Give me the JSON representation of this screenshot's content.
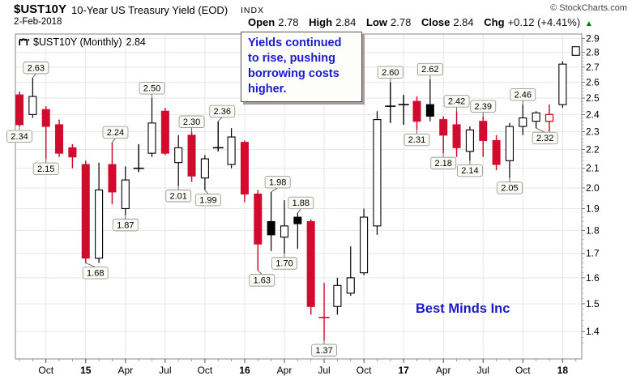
{
  "header": {
    "symbol": "$UST10Y",
    "title": "10-Year US Treasury Yield (EOD)",
    "exchange": "INDX",
    "date": "2-Feb-2018",
    "copyright": "© StockCharts.com",
    "quote": {
      "open_label": "Open",
      "open": "2.78",
      "high_label": "High",
      "high": "2.84",
      "low_label": "Low",
      "low": "2.78",
      "close_label": "Close",
      "close": "2.84",
      "chg_label": "Chg",
      "chg": "+0.12 (+4.41%)",
      "direction_arrow": "▲",
      "up_color": "#007a00"
    }
  },
  "legend": {
    "label": "$UST10Y (Monthly)",
    "last": "2.84"
  },
  "note_box": {
    "text": "Yields continued\nto rise, pushing\nborrowing costs\nhigher.",
    "color": "#1a1acd"
  },
  "watermark": {
    "text": "Best Minds Inc",
    "color": "#1a1acd"
  },
  "colors": {
    "down_fill": "#d20a2e",
    "up_fill": "#ffffff",
    "black_fill": "#000000",
    "grid": "#e7e7e7",
    "plot_border": "#888888",
    "tick": "#777777",
    "label_box_bg": "#fbfbf6",
    "label_box_border": "#999999"
  },
  "chart_data": {
    "type": "candlestick",
    "symbol": "$UST10Y",
    "timeframe": "Monthly",
    "scale": "log",
    "ylim": [
      1.35,
      2.92
    ],
    "grid": true,
    "y_ticks": [
      "2.9",
      "2.8",
      "2.7",
      "2.6",
      "2.5",
      "2.4",
      "2.3",
      "2.2",
      "2.1",
      "2.0",
      "1.9",
      "1.8",
      "1.7",
      "1.6",
      "1.5",
      "1.4"
    ],
    "x_ticks": [
      {
        "i": 2,
        "label": "Oct",
        "bold": false
      },
      {
        "i": 5,
        "label": "15",
        "bold": true
      },
      {
        "i": 8,
        "label": "Apr",
        "bold": false
      },
      {
        "i": 11,
        "label": "Jul",
        "bold": false
      },
      {
        "i": 14,
        "label": "Oct",
        "bold": false
      },
      {
        "i": 17,
        "label": "16",
        "bold": true
      },
      {
        "i": 20,
        "label": "Apr",
        "bold": false
      },
      {
        "i": 23,
        "label": "Jul",
        "bold": false
      },
      {
        "i": 26,
        "label": "Oct",
        "bold": false
      },
      {
        "i": 29,
        "label": "17",
        "bold": true
      },
      {
        "i": 32,
        "label": "Apr",
        "bold": false
      },
      {
        "i": 35,
        "label": "Jul",
        "bold": false
      },
      {
        "i": 38,
        "label": "Oct",
        "bold": false
      },
      {
        "i": 41,
        "label": "18",
        "bold": true
      }
    ],
    "candles": [
      {
        "m": "Aug 2014",
        "o": 2.52,
        "h": 2.54,
        "l": 2.33,
        "c": 2.34,
        "s": "red",
        "n": {
          "t": "2.34",
          "p": "below",
          "dx": 0
        }
      },
      {
        "m": "Sep 2014",
        "o": 2.4,
        "h": 2.63,
        "l": 2.38,
        "c": 2.51,
        "s": "white",
        "n": {
          "t": "2.63",
          "p": "above",
          "dx": 4
        }
      },
      {
        "m": "Oct 2014",
        "o": 2.43,
        "h": 2.45,
        "l": 2.15,
        "c": 2.33,
        "s": "red",
        "n": {
          "t": "2.15",
          "p": "below",
          "dx": 0
        }
      },
      {
        "m": "Nov 2014",
        "o": 2.34,
        "h": 2.37,
        "l": 2.16,
        "c": 2.18,
        "s": "red"
      },
      {
        "m": "Dec 2014",
        "o": 2.21,
        "h": 2.23,
        "l": 2.1,
        "c": 2.16,
        "s": "red"
      },
      {
        "m": "Jan 2015",
        "o": 2.12,
        "h": 2.14,
        "l": 1.66,
        "c": 1.68,
        "s": "red",
        "n": {
          "t": "1.68",
          "p": "below",
          "dx": 12
        }
      },
      {
        "m": "Feb 2015",
        "o": 1.68,
        "h": 2.13,
        "l": 1.66,
        "c": 1.99,
        "s": "white"
      },
      {
        "m": "Mar 2015",
        "o": 2.12,
        "h": 2.24,
        "l": 1.92,
        "c": 1.98,
        "s": "red",
        "n": {
          "t": "2.24",
          "p": "above",
          "dx": 4
        }
      },
      {
        "m": "Apr 2015",
        "o": 1.9,
        "h": 2.11,
        "l": 1.87,
        "c": 2.04,
        "s": "white",
        "n": {
          "t": "1.87",
          "p": "below",
          "dx": 0
        }
      },
      {
        "m": "May 2015",
        "o": 2.1,
        "h": 2.23,
        "l": 2.08,
        "c": 2.1,
        "s": "doji"
      },
      {
        "m": "Jun 2015",
        "o": 2.18,
        "h": 2.5,
        "l": 2.16,
        "c": 2.35,
        "s": "white",
        "n": {
          "t": "2.50",
          "p": "above",
          "dx": 0
        }
      },
      {
        "m": "Jul 2015",
        "o": 2.42,
        "h": 2.44,
        "l": 2.17,
        "c": 2.18,
        "s": "red"
      },
      {
        "m": "Aug 2015",
        "o": 2.13,
        "h": 2.28,
        "l": 2.01,
        "c": 2.21,
        "s": "white",
        "n": {
          "t": "2.01",
          "p": "below",
          "dx": 0
        }
      },
      {
        "m": "Sep 2015",
        "o": 2.28,
        "h": 2.3,
        "l": 2.03,
        "c": 2.06,
        "s": "red",
        "n": {
          "t": "2.30",
          "p": "above",
          "dx": 0
        }
      },
      {
        "m": "Oct 2015",
        "o": 2.05,
        "h": 2.17,
        "l": 1.99,
        "c": 2.15,
        "s": "white",
        "n": {
          "t": "1.99",
          "p": "below",
          "dx": 4
        }
      },
      {
        "m": "Nov 2015",
        "o": 2.21,
        "h": 2.36,
        "l": 2.19,
        "c": 2.21,
        "s": "doji",
        "n": {
          "t": "2.36",
          "p": "above",
          "dx": 5
        }
      },
      {
        "m": "Dec 2015",
        "o": 2.12,
        "h": 2.32,
        "l": 2.1,
        "c": 2.27,
        "s": "white"
      },
      {
        "m": "Jan 2016",
        "o": 2.24,
        "h": 2.25,
        "l": 1.93,
        "c": 1.97,
        "s": "red"
      },
      {
        "m": "Feb 2016",
        "o": 1.97,
        "h": 1.99,
        "l": 1.63,
        "c": 1.74,
        "s": "red",
        "n": {
          "t": "1.63",
          "p": "below",
          "dx": 5
        }
      },
      {
        "m": "Mar 2016",
        "o": 1.84,
        "h": 1.98,
        "l": 1.71,
        "c": 1.78,
        "s": "black",
        "n": {
          "t": "1.98",
          "p": "above",
          "dx": 8
        }
      },
      {
        "m": "Apr 2016",
        "o": 1.77,
        "h": 1.94,
        "l": 1.7,
        "c": 1.82,
        "s": "white",
        "n": {
          "t": "1.70",
          "p": "below",
          "dx": 0
        }
      },
      {
        "m": "May 2016",
        "o": 1.86,
        "h": 1.88,
        "l": 1.72,
        "c": 1.83,
        "s": "black",
        "n": {
          "t": "1.88",
          "p": "above",
          "dx": 4
        }
      },
      {
        "m": "Jun 2016",
        "o": 1.84,
        "h": 1.85,
        "l": 1.46,
        "c": 1.49,
        "s": "red"
      },
      {
        "m": "Jul 2016",
        "o": 1.46,
        "h": 1.58,
        "l": 1.37,
        "c": 1.45,
        "s": "doji-red",
        "n": {
          "t": "1.37",
          "p": "below",
          "dx": 0
        }
      },
      {
        "m": "Aug 2016",
        "o": 1.49,
        "h": 1.6,
        "l": 1.46,
        "c": 1.57,
        "s": "white"
      },
      {
        "m": "Sep 2016",
        "o": 1.54,
        "h": 1.73,
        "l": 1.53,
        "c": 1.6,
        "s": "white"
      },
      {
        "m": "Oct 2016",
        "o": 1.62,
        "h": 1.9,
        "l": 1.61,
        "c": 1.86,
        "s": "white"
      },
      {
        "m": "Nov 2016",
        "o": 1.82,
        "h": 2.42,
        "l": 1.78,
        "c": 2.37,
        "s": "white"
      },
      {
        "m": "Dec 2016",
        "o": 2.46,
        "h": 2.6,
        "l": 2.35,
        "c": 2.45,
        "s": "doji",
        "n": {
          "t": "2.60",
          "p": "above",
          "dx": 0
        }
      },
      {
        "m": "Jan 2017",
        "o": 2.45,
        "h": 2.52,
        "l": 2.34,
        "c": 2.46,
        "s": "doji"
      },
      {
        "m": "Feb 2017",
        "o": 2.48,
        "h": 2.51,
        "l": 2.31,
        "c": 2.36,
        "s": "red",
        "n": {
          "t": "2.31",
          "p": "below",
          "dx": 0
        }
      },
      {
        "m": "Mar 2017",
        "o": 2.46,
        "h": 2.62,
        "l": 2.36,
        "c": 2.39,
        "s": "black",
        "n": {
          "t": "2.62",
          "p": "above",
          "dx": 0
        }
      },
      {
        "m": "Apr 2017",
        "o": 2.37,
        "h": 2.39,
        "l": 2.18,
        "c": 2.28,
        "s": "red",
        "n": {
          "t": "2.18",
          "p": "below",
          "dx": 0
        }
      },
      {
        "m": "May 2017",
        "o": 2.34,
        "h": 2.42,
        "l": 2.16,
        "c": 2.21,
        "s": "red",
        "n": {
          "t": "2.42",
          "p": "above",
          "dx": 0
        }
      },
      {
        "m": "Jun 2017",
        "o": 2.19,
        "h": 2.33,
        "l": 2.14,
        "c": 2.31,
        "s": "white",
        "n": {
          "t": "2.14",
          "p": "below",
          "dx": 0
        }
      },
      {
        "m": "Jul 2017",
        "o": 2.36,
        "h": 2.39,
        "l": 2.16,
        "c": 2.25,
        "s": "red",
        "n": {
          "t": "2.39",
          "p": "above",
          "dx": 0
        }
      },
      {
        "m": "Aug 2017",
        "o": 2.25,
        "h": 2.28,
        "l": 2.09,
        "c": 2.12,
        "s": "red"
      },
      {
        "m": "Sep 2017",
        "o": 2.14,
        "h": 2.35,
        "l": 2.05,
        "c": 2.33,
        "s": "white",
        "n": {
          "t": "2.05",
          "p": "below",
          "dx": 0
        }
      },
      {
        "m": "Oct 2017",
        "o": 2.33,
        "h": 2.46,
        "l": 2.28,
        "c": 2.38,
        "s": "white",
        "n": {
          "t": "2.46",
          "p": "above",
          "dx": 0
        }
      },
      {
        "m": "Nov 2017",
        "o": 2.36,
        "h": 2.42,
        "l": 2.32,
        "c": 2.41,
        "s": "white",
        "n": {
          "t": "2.32",
          "p": "below",
          "dx": 11
        }
      },
      {
        "m": "Dec 2017",
        "o": 2.36,
        "h": 2.46,
        "l": 2.3,
        "c": 2.4,
        "s": "red-hollow"
      },
      {
        "m": "Jan 2018",
        "o": 2.46,
        "h": 2.74,
        "l": 2.44,
        "c": 2.72,
        "s": "white"
      },
      {
        "m": "Feb 2018",
        "o": 2.78,
        "h": 2.84,
        "l": 2.78,
        "c": 2.84,
        "s": "white"
      }
    ]
  }
}
